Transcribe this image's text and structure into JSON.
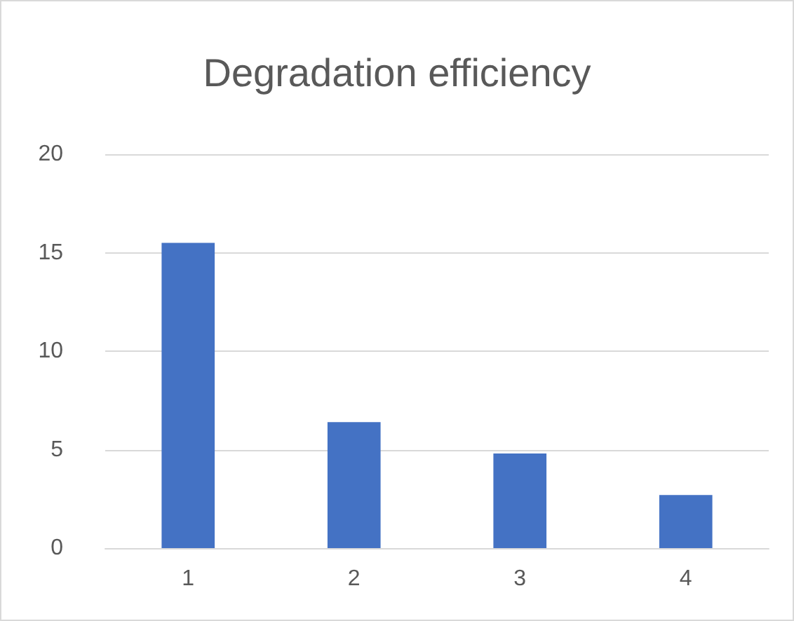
{
  "chart_data": {
    "type": "bar",
    "title": "Degradation efficiency",
    "categories": [
      "1",
      "2",
      "3",
      "4"
    ],
    "values": [
      15.5,
      6.4,
      4.8,
      2.7
    ],
    "color": "#4472c4",
    "ylim": [
      0,
      20
    ],
    "yticks": [
      0,
      5,
      10,
      15,
      20
    ],
    "grid": "y"
  }
}
